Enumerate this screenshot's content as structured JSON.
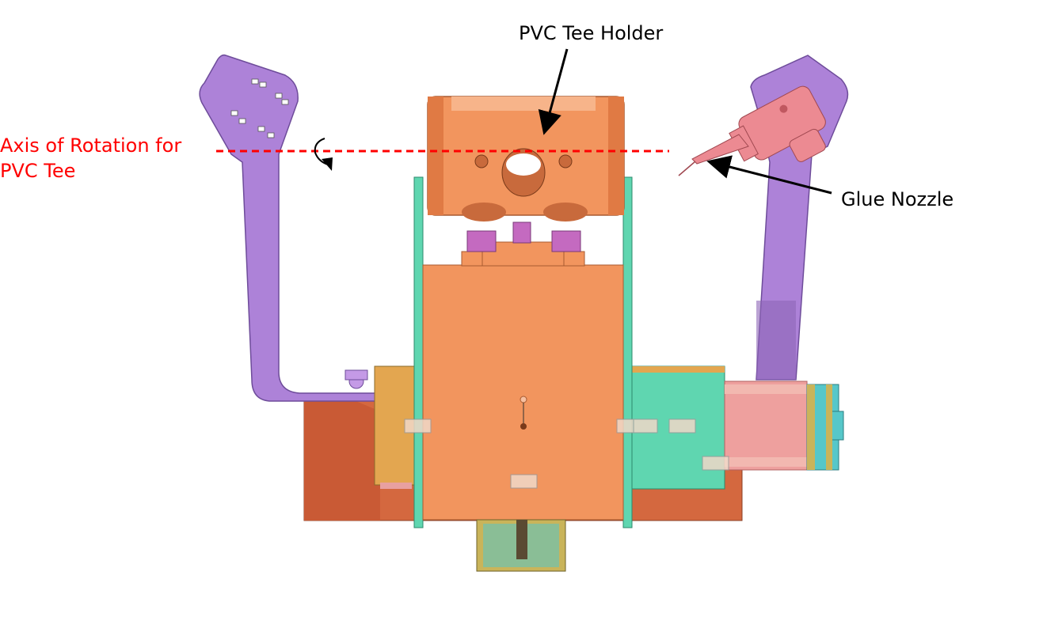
{
  "labels": {
    "tee_holder": "PVC Tee Holder",
    "glue_nozzle": "Glue Nozzle",
    "axis_line1": "Axis of Rotation for",
    "axis_line2": "PVC Tee"
  },
  "colors": {
    "axis": "#ff0000",
    "annotation": "#000000",
    "orange_part": "#f2955e",
    "purple_arm": "#ad82d8",
    "teal_plate": "#5fd6b0",
    "rust_base": "#d4683f",
    "pink_motor": "#eea09e",
    "gold_block": "#e3a650"
  }
}
